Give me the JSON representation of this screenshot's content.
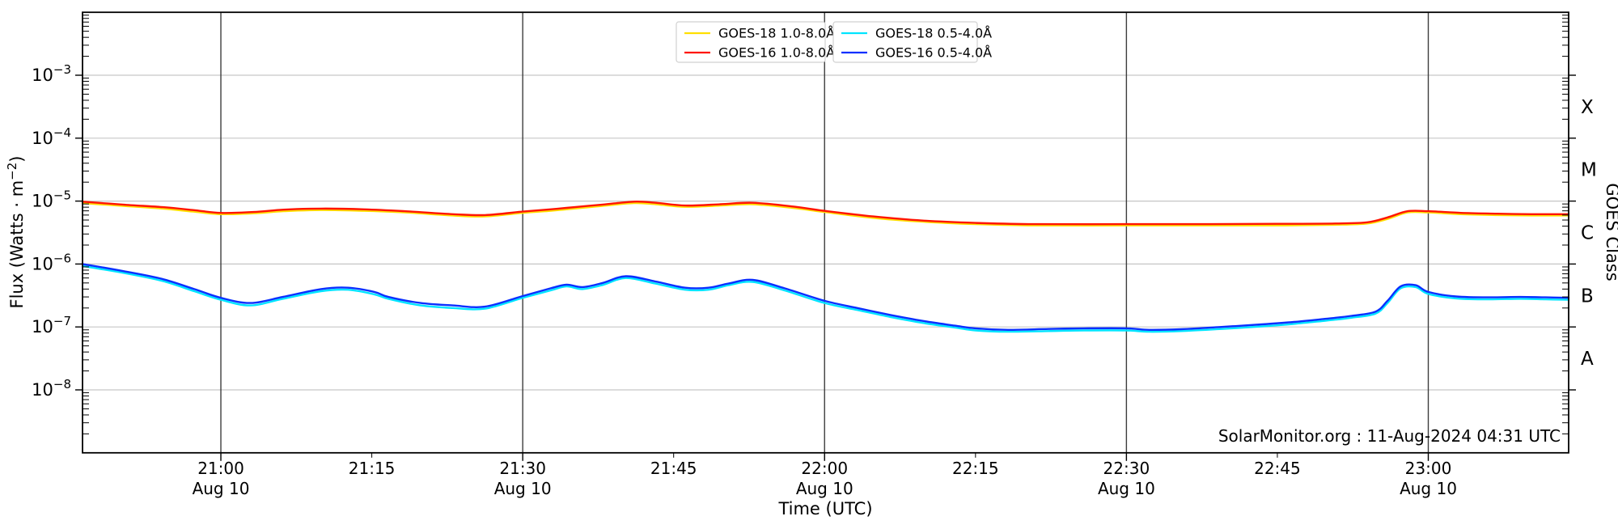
{
  "figure": {
    "background": "#ffffff",
    "watermark": "SolarMonitor.org : 11-Aug-2024 04:31 UTC"
  },
  "chart_data": {
    "type": "line",
    "title": "",
    "xlabel": "Time (UTC)",
    "ylabel": "Flux (Watts · m⁻²)",
    "ylabel_parts": [
      "Flux (Watts · m",
      "−2",
      ")"
    ],
    "ylabel_right": "GOES Class",
    "y_scale": "log",
    "ylim": [
      1e-09,
      0.01
    ],
    "x_start_utc": "20:46",
    "x_end_utc": "23:14",
    "x_span_minutes": 147.7,
    "grid": {
      "horizontal_color": "#c6c6c6",
      "vertical_color": "#3d3d3d",
      "frame_color": "#000000"
    },
    "y_ticks": [
      {
        "base": "10",
        "exp": "−3",
        "value": 0.001
      },
      {
        "base": "10",
        "exp": "−4",
        "value": 0.0001
      },
      {
        "base": "10",
        "exp": "−5",
        "value": 1e-05
      },
      {
        "base": "10",
        "exp": "−6",
        "value": 1e-06
      },
      {
        "base": "10",
        "exp": "−7",
        "value": 1e-07
      },
      {
        "base": "10",
        "exp": "−8",
        "value": 1e-08
      }
    ],
    "goes_classes": [
      {
        "label": "X",
        "log_center": -3.5
      },
      {
        "label": "M",
        "log_center": -4.5
      },
      {
        "label": "C",
        "log_center": -5.5
      },
      {
        "label": "B",
        "log_center": -6.5
      },
      {
        "label": "A",
        "log_center": -7.5
      }
    ],
    "x_ticks": [
      {
        "t": 13.75,
        "label": "21:00",
        "date": "Aug 10"
      },
      {
        "t": 28.75,
        "label": "21:15",
        "date": ""
      },
      {
        "t": 43.75,
        "label": "21:30",
        "date": "Aug 10"
      },
      {
        "t": 58.75,
        "label": "21:45",
        "date": ""
      },
      {
        "t": 73.75,
        "label": "22:00",
        "date": "Aug 10"
      },
      {
        "t": 88.75,
        "label": "22:15",
        "date": ""
      },
      {
        "t": 103.75,
        "label": "22:30",
        "date": "Aug 10"
      },
      {
        "t": 118.75,
        "label": "22:45",
        "date": ""
      },
      {
        "t": 133.75,
        "label": "23:00",
        "date": "Aug 10"
      }
    ],
    "legend_boxes": [
      {
        "entries": [
          {
            "label": "GOES-18 1.0-8.0Å",
            "color": "#ffdf00"
          },
          {
            "label": "GOES-16 1.0-8.0Å",
            "color": "#ff1400"
          }
        ]
      },
      {
        "entries": [
          {
            "label": "GOES-18 0.5-4.0Å",
            "color": "#00e5ff"
          },
          {
            "label": "GOES-16 0.5-4.0Å",
            "color": "#0a2fff"
          }
        ]
      }
    ],
    "watermark": "SolarMonitor.org : 11-Aug-2024 04:31 UTC",
    "series": [
      {
        "name": "GOES-18 1.0-8.0Å",
        "color": "#ffdf00",
        "points": [
          [
            0,
            9.3e-06
          ],
          [
            4,
            8.4e-06
          ],
          [
            8,
            7.6e-06
          ],
          [
            11,
            6.8e-06
          ],
          [
            13.75,
            6.2e-06
          ],
          [
            17,
            6.4e-06
          ],
          [
            20,
            6.9e-06
          ],
          [
            23.7,
            7.2e-06
          ],
          [
            28,
            7e-06
          ],
          [
            32,
            6.6e-06
          ],
          [
            36.8,
            5.9e-06
          ],
          [
            40,
            5.7e-06
          ],
          [
            43.75,
            6.5e-06
          ],
          [
            46.5,
            7e-06
          ],
          [
            48.1,
            7.4e-06
          ],
          [
            51.7,
            8.4e-06
          ],
          [
            54.8,
            9.3e-06
          ],
          [
            57,
            8.9e-06
          ],
          [
            59.9,
            8.1e-06
          ],
          [
            63.4,
            8.5e-06
          ],
          [
            66.6,
            8.9e-06
          ],
          [
            70.6,
            7.8e-06
          ],
          [
            73.75,
            6.7e-06
          ],
          [
            78.6,
            5.4e-06
          ],
          [
            83.5,
            4.7e-06
          ],
          [
            88.75,
            4.3e-06
          ],
          [
            94.7,
            4.1e-06
          ],
          [
            103.75,
            4.1e-06
          ],
          [
            112,
            4.1e-06
          ],
          [
            118.75,
            4.1e-06
          ],
          [
            124.5,
            4.2e-06
          ],
          [
            127.7,
            4.4e-06
          ],
          [
            129.7,
            5.2e-06
          ],
          [
            131.7,
            6.6e-06
          ],
          [
            133.75,
            6.6e-06
          ],
          [
            137,
            6.2e-06
          ],
          [
            140.6,
            6e-06
          ],
          [
            144,
            5.9e-06
          ],
          [
            147.7,
            5.9e-06
          ]
        ]
      },
      {
        "name": "GOES-16 1.0-8.0Å",
        "color": "#ff1400",
        "points": [
          [
            0,
            9.8e-06
          ],
          [
            4,
            8.8e-06
          ],
          [
            8,
            8e-06
          ],
          [
            11,
            7.2e-06
          ],
          [
            13.75,
            6.5e-06
          ],
          [
            17,
            6.7e-06
          ],
          [
            20,
            7.3e-06
          ],
          [
            23.7,
            7.6e-06
          ],
          [
            28,
            7.4e-06
          ],
          [
            32,
            6.9e-06
          ],
          [
            36.8,
            6.2e-06
          ],
          [
            40,
            6e-06
          ],
          [
            43.75,
            6.8e-06
          ],
          [
            46.5,
            7.4e-06
          ],
          [
            48.1,
            7.8e-06
          ],
          [
            51.7,
            8.8e-06
          ],
          [
            54.8,
            9.8e-06
          ],
          [
            57,
            9.4e-06
          ],
          [
            59.9,
            8.5e-06
          ],
          [
            63.4,
            8.9e-06
          ],
          [
            66.6,
            9.4e-06
          ],
          [
            70.6,
            8.2e-06
          ],
          [
            73.75,
            7e-06
          ],
          [
            78.6,
            5.7e-06
          ],
          [
            83.5,
            4.9e-06
          ],
          [
            88.75,
            4.5e-06
          ],
          [
            94.7,
            4.3e-06
          ],
          [
            103.75,
            4.3e-06
          ],
          [
            112,
            4.3e-06
          ],
          [
            118.75,
            4.35e-06
          ],
          [
            124.5,
            4.4e-06
          ],
          [
            127.7,
            4.6e-06
          ],
          [
            129.7,
            5.5e-06
          ],
          [
            131.7,
            6.9e-06
          ],
          [
            133.75,
            6.9e-06
          ],
          [
            137,
            6.5e-06
          ],
          [
            140.6,
            6.3e-06
          ],
          [
            144,
            6.2e-06
          ],
          [
            147.7,
            6.2e-06
          ]
        ]
      },
      {
        "name": "GOES-18 0.5-4.0Å",
        "color": "#00e5ff",
        "points": [
          [
            0,
            9.3e-07
          ],
          [
            3.9,
            7.3e-07
          ],
          [
            7.9,
            5.4e-07
          ],
          [
            11.1,
            3.7e-07
          ],
          [
            13.75,
            2.7e-07
          ],
          [
            16.7,
            2.2e-07
          ],
          [
            19.9,
            2.8e-07
          ],
          [
            23.7,
            3.7e-07
          ],
          [
            26.4,
            3.9e-07
          ],
          [
            29,
            3.3e-07
          ],
          [
            30.4,
            2.8e-07
          ],
          [
            33.6,
            2.2e-07
          ],
          [
            36.8,
            2e-07
          ],
          [
            40,
            1.95e-07
          ],
          [
            43.75,
            2.9e-07
          ],
          [
            46.5,
            3.8e-07
          ],
          [
            48.1,
            4.4e-07
          ],
          [
            49.7,
            4e-07
          ],
          [
            51.7,
            4.65e-07
          ],
          [
            54,
            6e-07
          ],
          [
            56.9,
            4.9e-07
          ],
          [
            59.9,
            3.9e-07
          ],
          [
            62.2,
            3.9e-07
          ],
          [
            64.2,
            4.6e-07
          ],
          [
            66.6,
            5.2e-07
          ],
          [
            69.8,
            3.8e-07
          ],
          [
            73.75,
            2.4e-07
          ],
          [
            77,
            1.86e-07
          ],
          [
            80.3,
            1.44e-07
          ],
          [
            83.5,
            1.16e-07
          ],
          [
            86.7,
            9.8e-08
          ],
          [
            88.75,
            8.8e-08
          ],
          [
            92,
            8.4e-08
          ],
          [
            96,
            8.6e-08
          ],
          [
            99.5,
            8.8e-08
          ],
          [
            103.75,
            8.8e-08
          ],
          [
            106,
            8.4e-08
          ],
          [
            109.2,
            8.6e-08
          ],
          [
            113.2,
            9.3e-08
          ],
          [
            117.2,
            1.02e-07
          ],
          [
            120.4,
            1.12e-07
          ],
          [
            123.6,
            1.26e-07
          ],
          [
            126.1,
            1.4e-07
          ],
          [
            128.5,
            1.63e-07
          ],
          [
            129.7,
            2.4e-07
          ],
          [
            131,
            4.1e-07
          ],
          [
            132.5,
            4.3e-07
          ],
          [
            133.75,
            3.35e-07
          ],
          [
            136.5,
            2.84e-07
          ],
          [
            139.7,
            2.74e-07
          ],
          [
            142.9,
            2.8e-07
          ],
          [
            145.4,
            2.74e-07
          ],
          [
            147.7,
            2.7e-07
          ]
        ]
      },
      {
        "name": "GOES-16 0.5-4.0Å",
        "color": "#0a2fff",
        "points": [
          [
            0,
            1e-06
          ],
          [
            3.9,
            7.8e-07
          ],
          [
            7.9,
            5.8e-07
          ],
          [
            11.1,
            4e-07
          ],
          [
            13.75,
            2.9e-07
          ],
          [
            16.7,
            2.4e-07
          ],
          [
            19.9,
            3e-07
          ],
          [
            23.7,
            4e-07
          ],
          [
            26.4,
            4.2e-07
          ],
          [
            29,
            3.6e-07
          ],
          [
            30.4,
            3e-07
          ],
          [
            33.6,
            2.4e-07
          ],
          [
            36.8,
            2.2e-07
          ],
          [
            40,
            2.1e-07
          ],
          [
            43.75,
            3.1e-07
          ],
          [
            46.5,
            4.1e-07
          ],
          [
            48.1,
            4.7e-07
          ],
          [
            49.7,
            4.3e-07
          ],
          [
            51.7,
            5e-07
          ],
          [
            54,
            6.4e-07
          ],
          [
            56.9,
            5.3e-07
          ],
          [
            59.9,
            4.2e-07
          ],
          [
            62.2,
            4.2e-07
          ],
          [
            64.2,
            4.9e-07
          ],
          [
            66.6,
            5.6e-07
          ],
          [
            69.8,
            4.1e-07
          ],
          [
            73.75,
            2.6e-07
          ],
          [
            77,
            2e-07
          ],
          [
            80.3,
            1.55e-07
          ],
          [
            83.5,
            1.25e-07
          ],
          [
            86.7,
            1.05e-07
          ],
          [
            88.75,
            9.5e-08
          ],
          [
            92,
            9e-08
          ],
          [
            96,
            9.3e-08
          ],
          [
            99.5,
            9.5e-08
          ],
          [
            103.75,
            9.5e-08
          ],
          [
            106,
            9e-08
          ],
          [
            109.2,
            9.2e-08
          ],
          [
            113.2,
            1e-07
          ],
          [
            117.2,
            1.1e-07
          ],
          [
            120.4,
            1.2e-07
          ],
          [
            123.6,
            1.35e-07
          ],
          [
            126.1,
            1.5e-07
          ],
          [
            128.5,
            1.75e-07
          ],
          [
            129.7,
            2.6e-07
          ],
          [
            131,
            4.4e-07
          ],
          [
            132.5,
            4.6e-07
          ],
          [
            133.75,
            3.6e-07
          ],
          [
            136.5,
            3.05e-07
          ],
          [
            139.7,
            2.95e-07
          ],
          [
            142.9,
            3e-07
          ],
          [
            145.4,
            2.95e-07
          ],
          [
            147.7,
            2.9e-07
          ]
        ]
      }
    ]
  }
}
